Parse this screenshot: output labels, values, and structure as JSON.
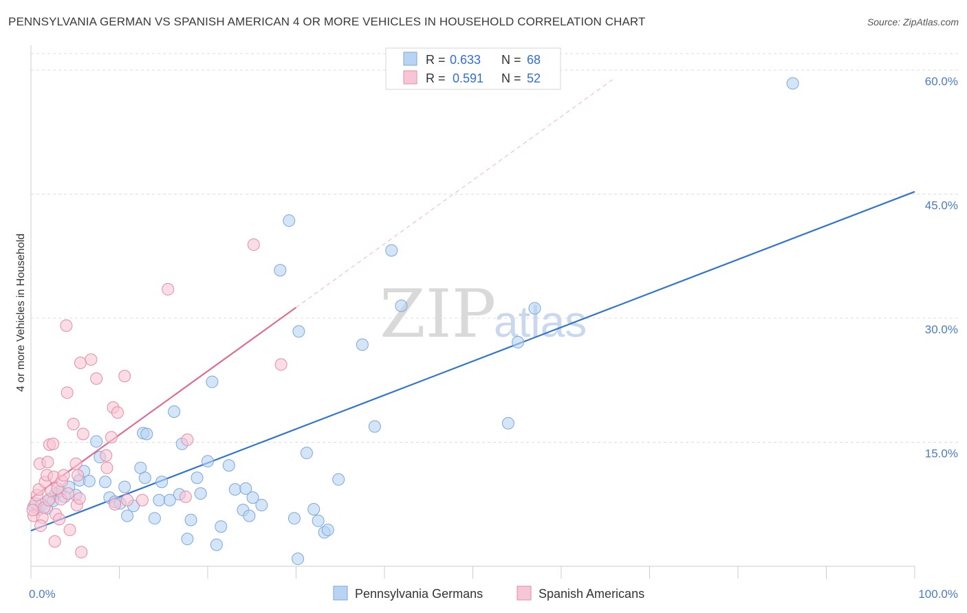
{
  "title": "PENNSYLVANIA GERMAN VS SPANISH AMERICAN 4 OR MORE VEHICLES IN HOUSEHOLD CORRELATION CHART",
  "source": "Source: ZipAtlas.com",
  "watermark": {
    "zip": "ZIP",
    "atlas": "atlas"
  },
  "colors": {
    "blue_fill": "#b8d3f3",
    "blue_stroke": "#7aa7de",
    "blue_line": "#2d74d0",
    "pink_fill": "#f7c6d4",
    "pink_stroke": "#e88aa6",
    "pink_line": "#e06a92",
    "grid": "#dddddd",
    "tick_label": "#4a7cc7"
  },
  "legend": {
    "rows": [
      {
        "r_label": "R =",
        "r_value": "0.633",
        "n_label": "N =",
        "n_value": "68"
      },
      {
        "r_label": "R =",
        "r_value": "0.591",
        "n_label": "N =",
        "n_value": "52"
      }
    ]
  },
  "chart_data": {
    "type": "scatter",
    "title": "PENNSYLVANIA GERMAN VS SPANISH AMERICAN 4 OR MORE VEHICLES IN HOUSEHOLD CORRELATION CHART",
    "xlabel": "",
    "ylabel": "4 or more Vehicles in Household",
    "xlim": [
      0,
      100
    ],
    "ylim": [
      0,
      62
    ],
    "x_tick_labels": [
      "0.0%",
      "100.0%"
    ],
    "y_ticks": [
      15,
      30,
      45,
      60
    ],
    "y_tick_labels": [
      "15.0%",
      "30.0%",
      "45.0%",
      "60.0%"
    ],
    "grid": true,
    "legend_position": "top-center",
    "series": [
      {
        "name": "Pennsylvania Germans",
        "color": "#b8d3f3",
        "r": "0.633",
        "n": "68",
        "trend": {
          "x0": 0,
          "y0": 4.3,
          "x1": 100,
          "y1": 45.3
        },
        "points": [
          [
            0.3,
            7.2
          ],
          [
            0.8,
            6.8
          ],
          [
            1.2,
            7.5
          ],
          [
            1.8,
            7.0
          ],
          [
            2.2,
            8.2
          ],
          [
            2.8,
            8.8
          ],
          [
            3.3,
            9.1
          ],
          [
            3.8,
            8.4
          ],
          [
            4.3,
            9.6
          ],
          [
            5.1,
            8.6
          ],
          [
            5.5,
            10.4
          ],
          [
            6.0,
            11.5
          ],
          [
            6.6,
            10.3
          ],
          [
            7.4,
            15.1
          ],
          [
            7.8,
            13.2
          ],
          [
            8.4,
            10.2
          ],
          [
            8.9,
            8.3
          ],
          [
            9.5,
            7.8
          ],
          [
            10.1,
            7.6
          ],
          [
            10.6,
            9.6
          ],
          [
            10.9,
            6.1
          ],
          [
            11.6,
            7.3
          ],
          [
            12.4,
            11.9
          ],
          [
            12.7,
            16.1
          ],
          [
            12.9,
            10.7
          ],
          [
            13.1,
            16.0
          ],
          [
            14.0,
            5.8
          ],
          [
            14.5,
            8.0
          ],
          [
            14.8,
            10.2
          ],
          [
            15.7,
            8.0
          ],
          [
            16.2,
            18.7
          ],
          [
            16.8,
            8.7
          ],
          [
            17.1,
            14.8
          ],
          [
            17.7,
            3.3
          ],
          [
            18.1,
            5.6
          ],
          [
            18.8,
            10.7
          ],
          [
            19.2,
            8.8
          ],
          [
            20.0,
            12.7
          ],
          [
            20.5,
            22.3
          ],
          [
            21.0,
            2.6
          ],
          [
            21.5,
            4.8
          ],
          [
            22.4,
            12.2
          ],
          [
            23.1,
            9.3
          ],
          [
            24.0,
            6.8
          ],
          [
            24.3,
            9.4
          ],
          [
            24.7,
            6.1
          ],
          [
            25.1,
            8.3
          ],
          [
            26.1,
            7.4
          ],
          [
            28.2,
            35.8
          ],
          [
            29.2,
            41.8
          ],
          [
            29.8,
            5.8
          ],
          [
            30.2,
            0.9
          ],
          [
            30.3,
            28.4
          ],
          [
            31.2,
            13.7
          ],
          [
            32.0,
            6.9
          ],
          [
            32.5,
            5.5
          ],
          [
            33.2,
            4.1
          ],
          [
            33.6,
            4.4
          ],
          [
            34.8,
            10.5
          ],
          [
            37.5,
            26.8
          ],
          [
            38.9,
            16.9
          ],
          [
            40.8,
            38.2
          ],
          [
            41.9,
            31.5
          ],
          [
            54.0,
            17.3
          ],
          [
            55.1,
            27.1
          ],
          [
            57.0,
            31.2
          ],
          [
            86.2,
            58.4
          ],
          [
            2.5,
            7.9
          ]
        ]
      },
      {
        "name": "Spanish Americans",
        "color": "#f7c6d4",
        "r": "0.591",
        "n": "52",
        "trend": {
          "x0": 0,
          "y0": 8.2,
          "x1": 30,
          "y1": 31.3
        },
        "trend_extension": {
          "x1": 66,
          "y1": 59.0
        },
        "points": [
          [
            0.3,
            6.1
          ],
          [
            0.5,
            7.6
          ],
          [
            0.7,
            8.6
          ],
          [
            0.9,
            9.3
          ],
          [
            1.0,
            12.4
          ],
          [
            1.3,
            5.9
          ],
          [
            1.5,
            7.1
          ],
          [
            1.6,
            10.2
          ],
          [
            1.8,
            11.0
          ],
          [
            1.9,
            12.6
          ],
          [
            2.0,
            8.0
          ],
          [
            2.1,
            14.7
          ],
          [
            2.3,
            9.1
          ],
          [
            2.5,
            14.8
          ],
          [
            2.6,
            10.8
          ],
          [
            2.7,
            3.0
          ],
          [
            2.8,
            6.3
          ],
          [
            3.0,
            9.4
          ],
          [
            3.2,
            5.7
          ],
          [
            3.4,
            8.1
          ],
          [
            3.5,
            10.3
          ],
          [
            3.7,
            11.0
          ],
          [
            4.0,
            29.1
          ],
          [
            4.1,
            21.0
          ],
          [
            4.2,
            8.8
          ],
          [
            4.4,
            4.4
          ],
          [
            4.8,
            17.2
          ],
          [
            5.1,
            12.4
          ],
          [
            5.2,
            7.4
          ],
          [
            5.3,
            11.0
          ],
          [
            5.5,
            8.2
          ],
          [
            5.6,
            24.6
          ],
          [
            5.9,
            16.0
          ],
          [
            5.7,
            1.7
          ],
          [
            6.8,
            25.0
          ],
          [
            7.4,
            22.7
          ],
          [
            8.5,
            13.4
          ],
          [
            8.6,
            11.9
          ],
          [
            9.1,
            15.6
          ],
          [
            9.3,
            19.2
          ],
          [
            9.5,
            7.5
          ],
          [
            9.8,
            18.6
          ],
          [
            10.6,
            23.0
          ],
          [
            10.9,
            8.0
          ],
          [
            12.6,
            8.0
          ],
          [
            15.5,
            33.5
          ],
          [
            17.5,
            8.4
          ],
          [
            17.7,
            15.3
          ],
          [
            25.2,
            38.9
          ],
          [
            28.3,
            24.4
          ],
          [
            1.1,
            4.9
          ],
          [
            0.2,
            6.8
          ]
        ]
      }
    ]
  },
  "bottom_legend": [
    {
      "label": "Pennsylvania Germans"
    },
    {
      "label": "Spanish Americans"
    }
  ]
}
